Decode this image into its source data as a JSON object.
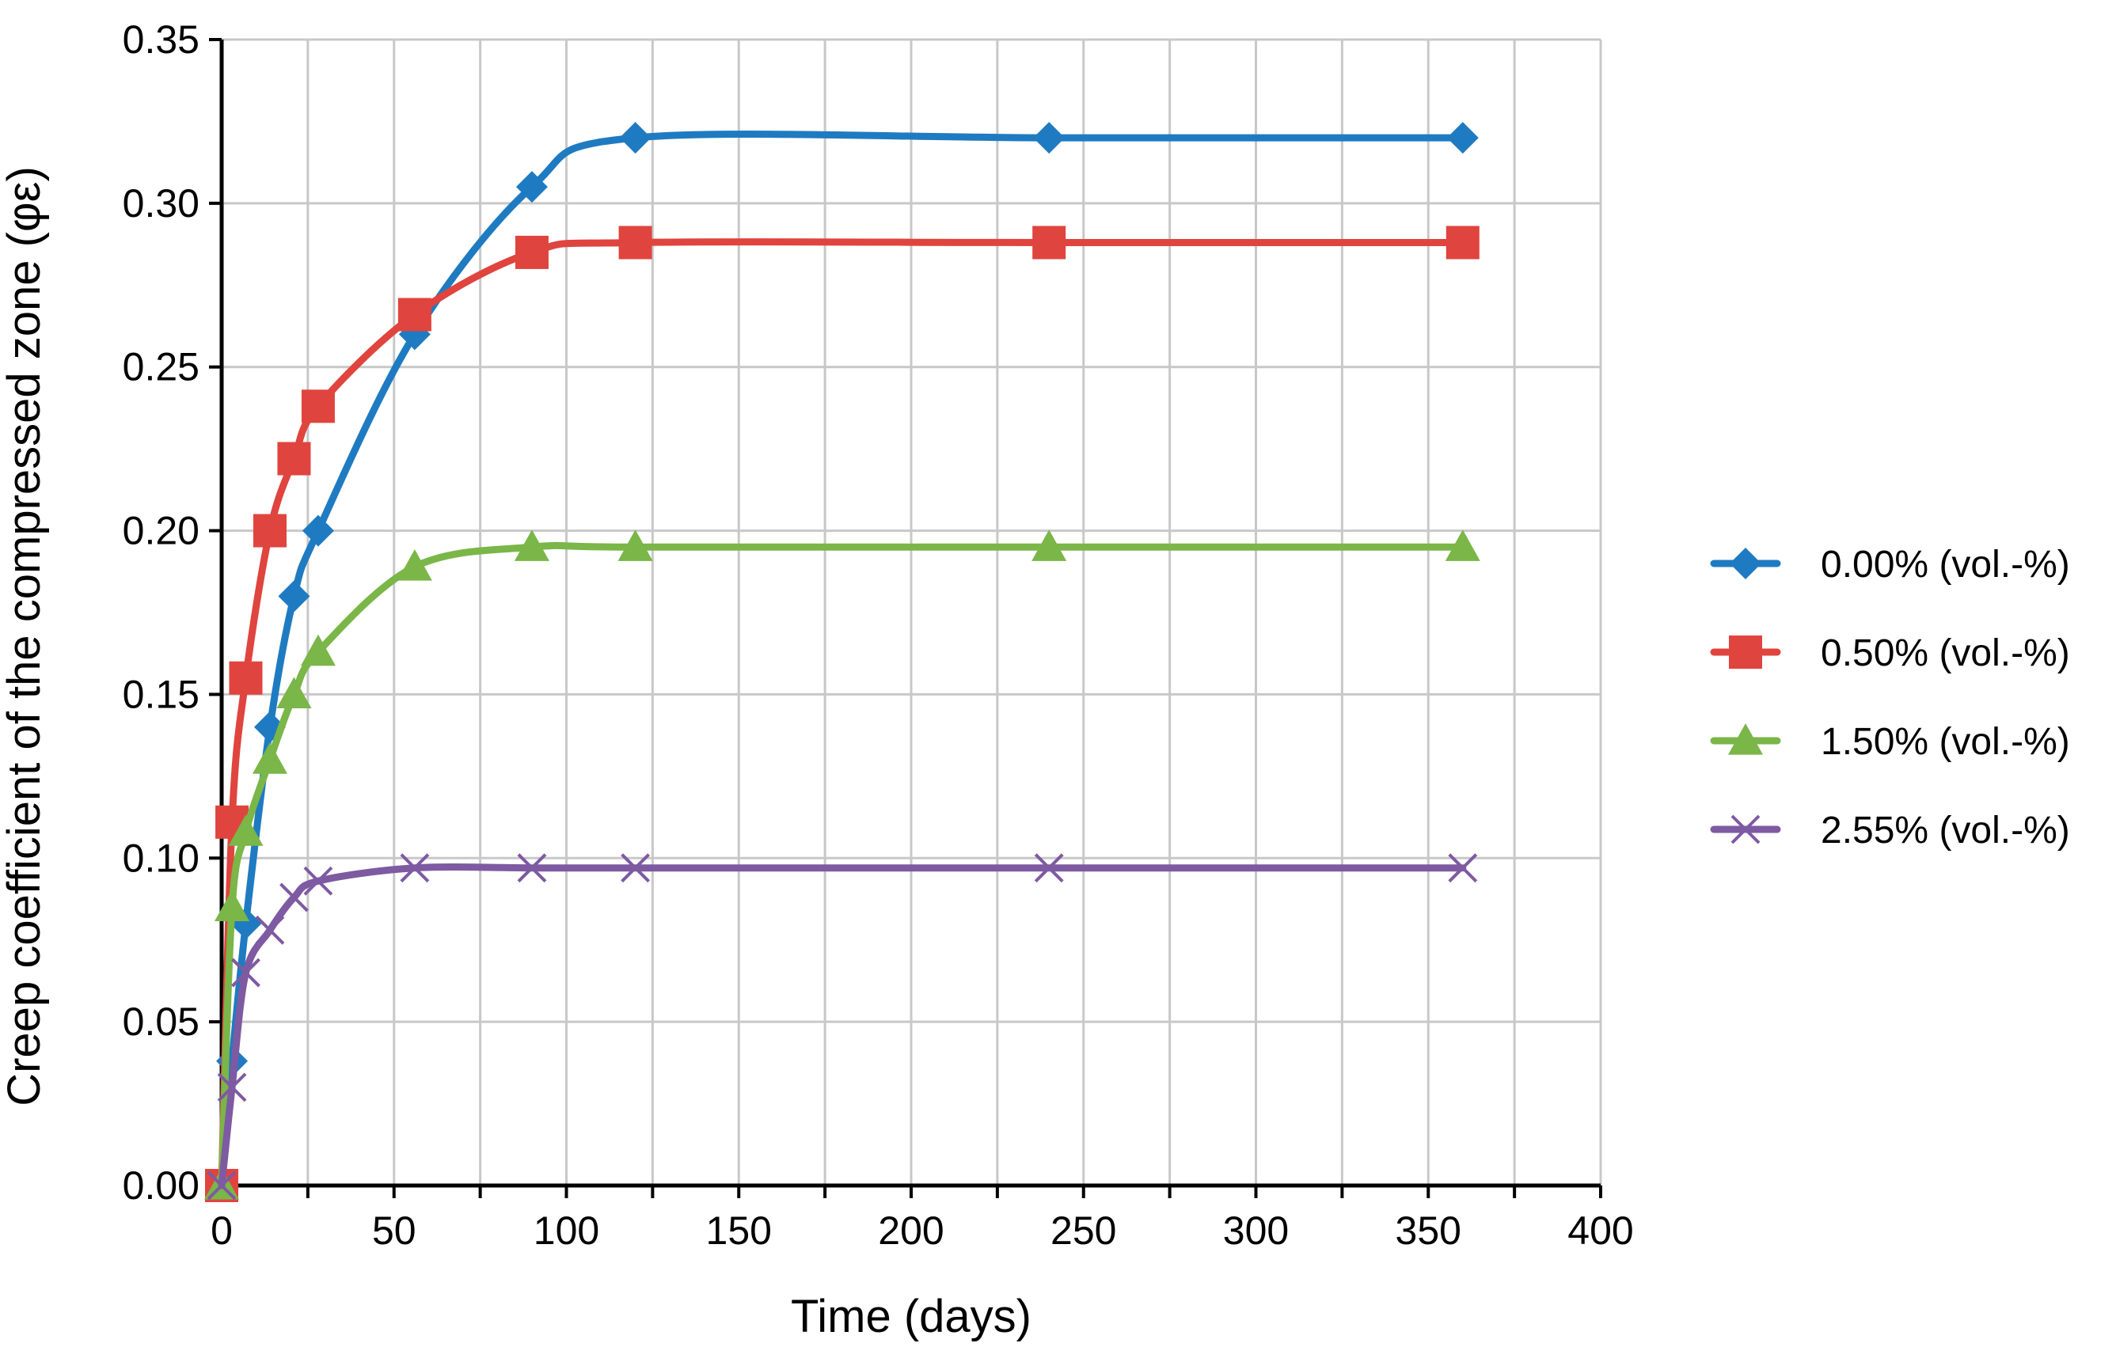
{
  "chart_data": {
    "type": "line",
    "xlabel": "Time (days)",
    "ylabel": "Creep coefficient of the compressed zone (φε)",
    "xlim": [
      0,
      400
    ],
    "ylim": [
      0,
      0.35
    ],
    "x_ticks": [
      0,
      50,
      100,
      150,
      200,
      250,
      300,
      350,
      400
    ],
    "y_ticks": [
      0.0,
      0.05,
      0.1,
      0.15,
      0.2,
      0.25,
      0.3,
      0.35
    ],
    "x_tick_labels": [
      "0",
      "50",
      "100",
      "150",
      "200",
      "250",
      "300",
      "350",
      "400"
    ],
    "y_tick_labels": [
      "0.00",
      "0.05",
      "0.10",
      "0.15",
      "0.20",
      "0.25",
      "0.30",
      "0.35"
    ],
    "grid": true,
    "x_gridlines": [
      0,
      25,
      50,
      75,
      100,
      125,
      150,
      175,
      200,
      225,
      250,
      275,
      300,
      325,
      350,
      375,
      400
    ],
    "legend_position": "right",
    "series": [
      {
        "name": "0.00% (vol.-%)",
        "color": "#1f7bc1",
        "marker": "diamond",
        "x": [
          0,
          3,
          7,
          14,
          21,
          28,
          56,
          90,
          120,
          240,
          360
        ],
        "y": [
          0.0,
          0.038,
          0.08,
          0.14,
          0.18,
          0.2,
          0.26,
          0.305,
          0.32,
          0.32,
          0.32
        ]
      },
      {
        "name": "0.50% (vol.-%)",
        "color": "#e0443e",
        "marker": "square",
        "x": [
          0,
          3,
          7,
          14,
          21,
          28,
          56,
          90,
          120,
          240,
          360
        ],
        "y": [
          0.0,
          0.111,
          0.155,
          0.2,
          0.222,
          0.238,
          0.266,
          0.285,
          0.288,
          0.288,
          0.288
        ]
      },
      {
        "name": "1.50% (vol.-%)",
        "color": "#7ab648",
        "marker": "triangle",
        "x": [
          0,
          3,
          7,
          14,
          21,
          28,
          56,
          90,
          120,
          240,
          360
        ],
        "y": [
          0.0,
          0.085,
          0.108,
          0.13,
          0.15,
          0.163,
          0.189,
          0.195,
          0.195,
          0.195,
          0.195
        ]
      },
      {
        "name": "2.55% (vol.-%)",
        "color": "#7e5aa2",
        "marker": "x",
        "x": [
          0,
          3,
          7,
          14,
          21,
          28,
          56,
          90,
          120,
          240,
          360
        ],
        "y": [
          0.0,
          0.03,
          0.065,
          0.078,
          0.088,
          0.093,
          0.097,
          0.097,
          0.097,
          0.097,
          0.097
        ]
      }
    ]
  }
}
